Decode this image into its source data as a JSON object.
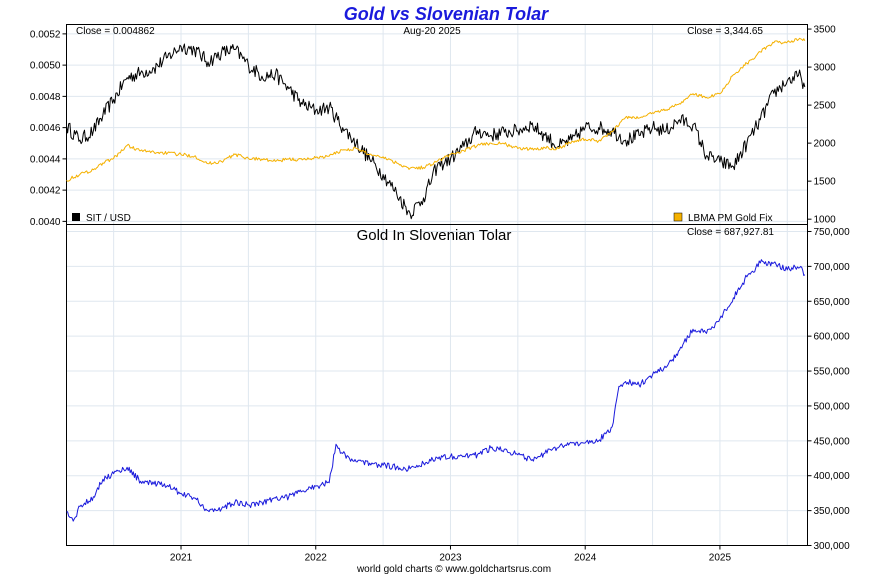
{
  "chart_data": [
    {
      "type": "line",
      "title": "Gold vs Slovenian Tolar",
      "date_label": "Aug-20  2025",
      "left_close": "Close = 0.004862",
      "right_close": "Close = 3,344.65",
      "x_ticks": [
        "2021",
        "2022",
        "2023",
        "2024",
        "2025"
      ],
      "y_left_ticks": [
        "0.0040",
        "0.0042",
        "0.0044",
        "0.0046",
        "0.0048",
        "0.0050",
        "0.0052"
      ],
      "y_left_range": [
        0.00398,
        0.00526
      ],
      "y_right_ticks": [
        "1000",
        "1500",
        "2000",
        "2500",
        "3000",
        "3500"
      ],
      "y_right_range": [
        930,
        3560
      ],
      "grid": true,
      "legend_position": "bottom",
      "series": [
        {
          "name": "SIT / USD",
          "axis": "left",
          "color": "#000000",
          "x": [
            2020.15,
            2020.25,
            2020.35,
            2020.42,
            2020.5,
            2020.6,
            2020.7,
            2020.8,
            2020.9,
            2021.0,
            2021.1,
            2021.2,
            2021.3,
            2021.4,
            2021.5,
            2021.6,
            2021.7,
            2021.8,
            2021.9,
            2022.0,
            2022.1,
            2022.2,
            2022.3,
            2022.4,
            2022.5,
            2022.6,
            2022.7,
            2022.8,
            2022.9,
            2023.0,
            2023.1,
            2023.2,
            2023.3,
            2023.4,
            2023.5,
            2023.6,
            2023.7,
            2023.8,
            2023.9,
            2024.0,
            2024.1,
            2024.2,
            2024.3,
            2024.4,
            2024.5,
            2024.6,
            2024.7,
            2024.8,
            2024.9,
            2025.0,
            2025.1,
            2025.2,
            2025.3,
            2025.4,
            2025.5,
            2025.6,
            2025.63
          ],
          "values": [
            0.00461,
            0.00452,
            0.00458,
            0.00468,
            0.00478,
            0.00492,
            0.00495,
            0.00498,
            0.00505,
            0.00512,
            0.0051,
            0.00502,
            0.00508,
            0.0051,
            0.005,
            0.00493,
            0.00494,
            0.00485,
            0.00475,
            0.00471,
            0.00473,
            0.0046,
            0.0045,
            0.0044,
            0.0043,
            0.00418,
            0.00405,
            0.00415,
            0.00435,
            0.0044,
            0.00448,
            0.00458,
            0.00455,
            0.00457,
            0.00458,
            0.00462,
            0.00455,
            0.00448,
            0.00452,
            0.0046,
            0.0046,
            0.00458,
            0.00452,
            0.00455,
            0.0046,
            0.00458,
            0.00465,
            0.00462,
            0.00442,
            0.00438,
            0.00435,
            0.0045,
            0.00465,
            0.00482,
            0.0049,
            0.00493,
            0.00486
          ]
        },
        {
          "name": "LBMA PM Gold Fix",
          "axis": "right",
          "color": "#f5b100",
          "x": [
            2020.15,
            2020.25,
            2020.35,
            2020.42,
            2020.5,
            2020.6,
            2020.7,
            2020.8,
            2020.9,
            2021.0,
            2021.1,
            2021.2,
            2021.3,
            2021.4,
            2021.5,
            2021.6,
            2021.7,
            2021.8,
            2021.9,
            2022.0,
            2022.1,
            2022.2,
            2022.3,
            2022.4,
            2022.5,
            2022.6,
            2022.7,
            2022.8,
            2022.9,
            2023.0,
            2023.1,
            2023.2,
            2023.3,
            2023.4,
            2023.5,
            2023.6,
            2023.7,
            2023.8,
            2023.9,
            2024.0,
            2024.1,
            2024.2,
            2024.3,
            2024.4,
            2024.5,
            2024.6,
            2024.7,
            2024.8,
            2024.9,
            2025.0,
            2025.1,
            2025.2,
            2025.3,
            2025.4,
            2025.5,
            2025.6,
            2025.63
          ],
          "values": [
            1510,
            1590,
            1650,
            1740,
            1800,
            1970,
            1900,
            1880,
            1870,
            1850,
            1830,
            1730,
            1760,
            1850,
            1800,
            1790,
            1760,
            1790,
            1780,
            1810,
            1830,
            1910,
            1930,
            1850,
            1820,
            1740,
            1670,
            1680,
            1760,
            1850,
            1900,
            1970,
            2000,
            1990,
            1930,
            1920,
            1940,
            1930,
            2020,
            2050,
            2030,
            2150,
            2340,
            2330,
            2400,
            2440,
            2520,
            2650,
            2600,
            2650,
            2900,
            3050,
            3200,
            3320,
            3330,
            3370,
            3345
          ]
        }
      ]
    },
    {
      "type": "line",
      "title": "Gold In Slovenian Tolar",
      "close_label": "Close = 687,927.81",
      "x_ticks": [
        "2021",
        "2022",
        "2023",
        "2024",
        "2025"
      ],
      "y_ticks": [
        "300,000",
        "350,000",
        "400,000",
        "450,000",
        "500,000",
        "550,000",
        "600,000",
        "650,000",
        "700,000",
        "750,000"
      ],
      "y_range": [
        300000,
        760000
      ],
      "grid": true,
      "series": [
        {
          "name": "Gold In Slovenian Tolar",
          "color": "#1a1adc",
          "x": [
            2020.15,
            2020.2,
            2020.25,
            2020.35,
            2020.42,
            2020.5,
            2020.6,
            2020.7,
            2020.8,
            2020.9,
            2021.0,
            2021.1,
            2021.2,
            2021.3,
            2021.4,
            2021.5,
            2021.6,
            2021.7,
            2021.8,
            2021.9,
            2022.0,
            2022.1,
            2022.15,
            2022.2,
            2022.3,
            2022.4,
            2022.5,
            2022.6,
            2022.7,
            2022.8,
            2022.9,
            2023.0,
            2023.1,
            2023.2,
            2023.3,
            2023.4,
            2023.5,
            2023.6,
            2023.7,
            2023.8,
            2023.9,
            2024.0,
            2024.1,
            2024.2,
            2024.25,
            2024.3,
            2024.4,
            2024.5,
            2024.6,
            2024.7,
            2024.8,
            2024.9,
            2025.0,
            2025.1,
            2025.2,
            2025.3,
            2025.4,
            2025.5,
            2025.6,
            2025.63
          ],
          "values": [
            348000,
            335000,
            356000,
            370000,
            395000,
            403000,
            412000,
            392000,
            388000,
            386000,
            375000,
            368000,
            350000,
            352000,
            362000,
            358000,
            362000,
            368000,
            370000,
            378000,
            385000,
            390000,
            445000,
            432000,
            420000,
            418000,
            415000,
            412000,
            410000,
            418000,
            426000,
            428000,
            428000,
            430000,
            440000,
            438000,
            430000,
            422000,
            432000,
            440000,
            447000,
            447000,
            450000,
            470000,
            528000,
            535000,
            530000,
            545000,
            555000,
            580000,
            610000,
            604000,
            625000,
            655000,
            685000,
            705000,
            705000,
            695000,
            700000,
            688000
          ]
        }
      ]
    }
  ],
  "legend_top": {
    "left": "SIT / USD",
    "right": "LBMA PM Gold Fix"
  },
  "colors": {
    "title": "#1a1adc",
    "gold": "#f5b100",
    "sit": "#000000",
    "blue": "#1a1adc",
    "grid": "#dfe7ef"
  },
  "footer": "world gold charts © www.goldchartsrus.com"
}
